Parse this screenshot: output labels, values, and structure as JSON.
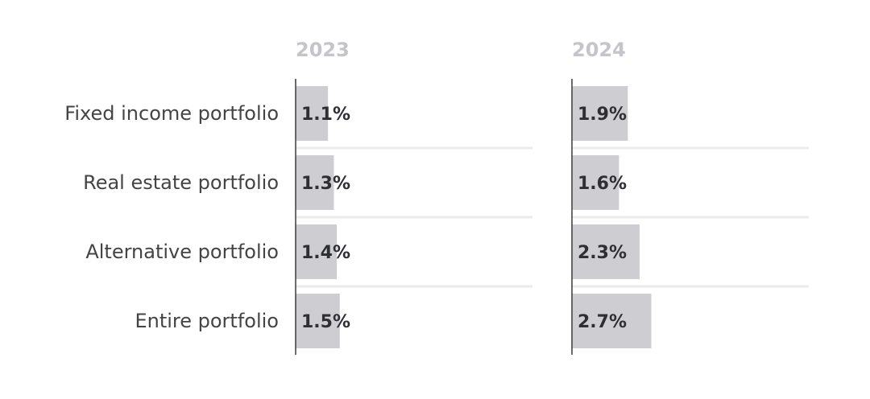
{
  "chart_data": {
    "type": "bar",
    "orientation": "horizontal",
    "categories": [
      "Fixed income portfolio",
      "Real estate portfolio",
      "Alternative portfolio",
      "Entire portfolio"
    ],
    "series": [
      {
        "name": "2023",
        "values": [
          1.1,
          1.3,
          1.4,
          1.5
        ],
        "labels": [
          "1.1%",
          "1.3%",
          "1.4%",
          "1.5%"
        ]
      },
      {
        "name": "2024",
        "values": [
          1.9,
          1.6,
          2.3,
          2.7
        ],
        "labels": [
          "1.9%",
          "1.6%",
          "2.3%",
          "2.7%"
        ]
      }
    ],
    "value_unit": "%",
    "grid": false,
    "legend": "none",
    "colors": {
      "bar": "#cecdd2",
      "panel_title": "#c4c4ca",
      "data_label": "#2e2e35",
      "category_label": "#444444",
      "axis": "#3a3a3a",
      "separator": "#ebebeb"
    }
  }
}
